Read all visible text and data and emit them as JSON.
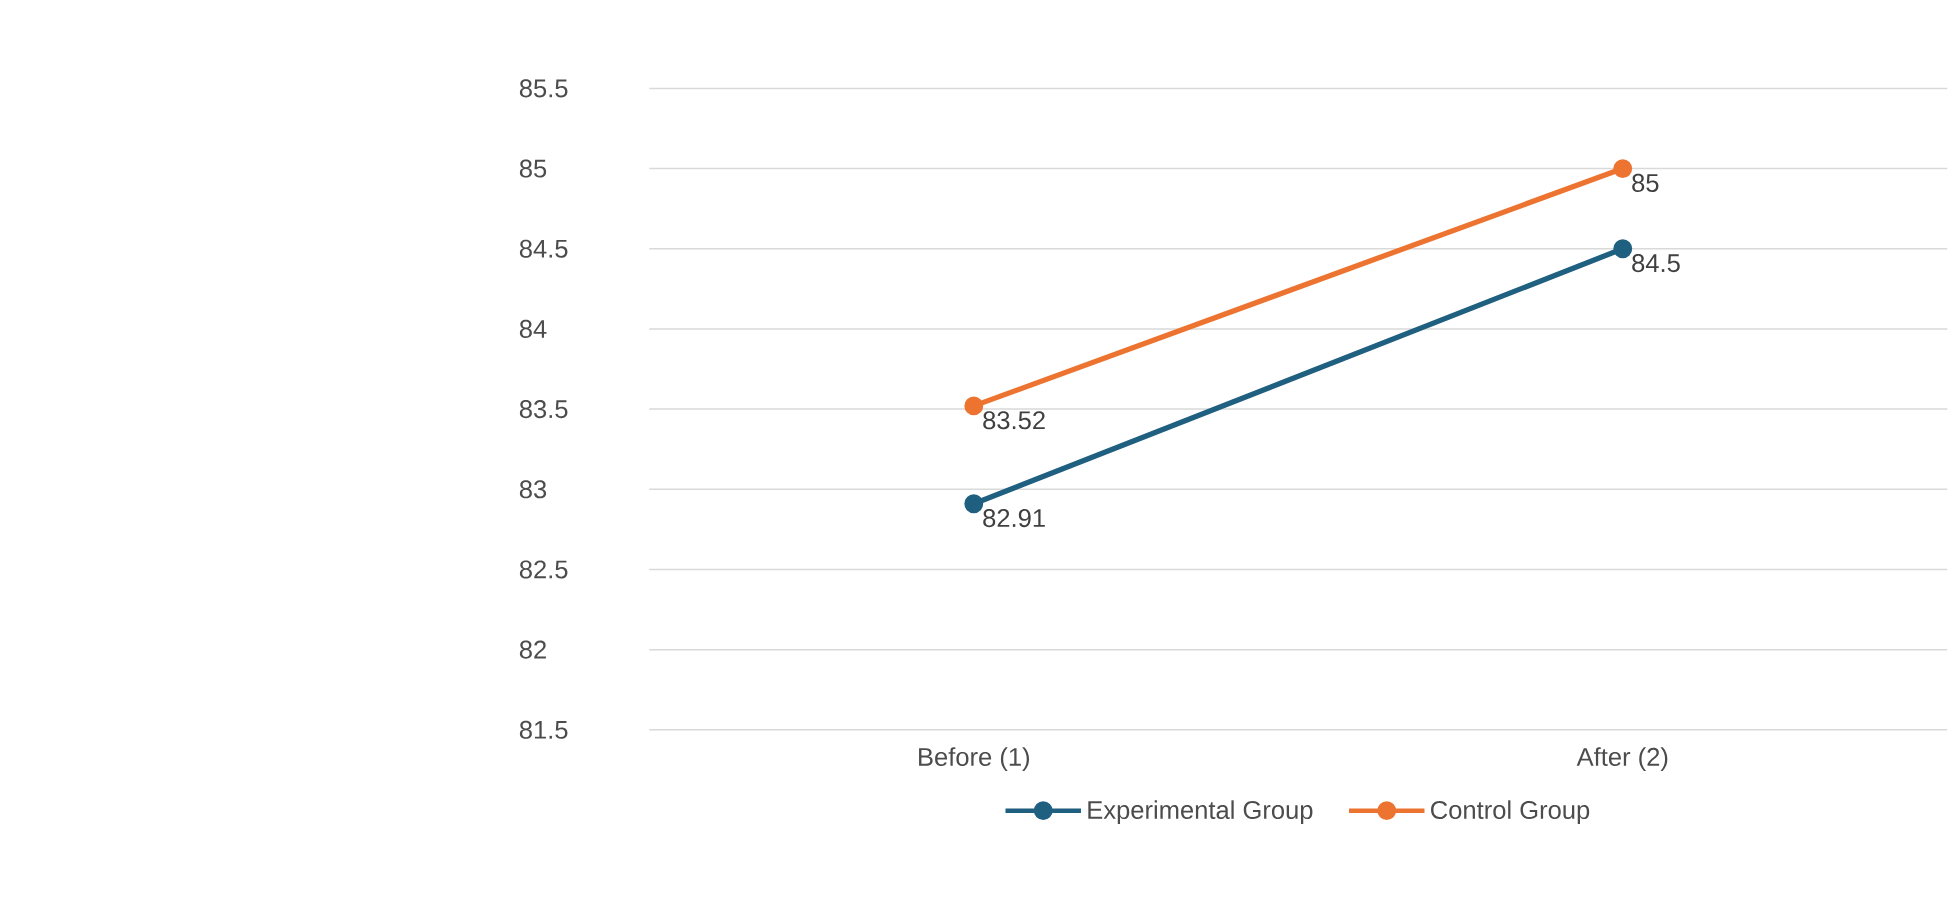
{
  "chart_data": {
    "type": "line",
    "categories": [
      "Before (1)",
      "After (2)"
    ],
    "series": [
      {
        "name": "Experimental Group",
        "color": "#1f5f7f",
        "values": [
          82.91,
          84.5
        ]
      },
      {
        "name": "Control Group",
        "color": "#ed7430",
        "values": [
          83.52,
          85
        ]
      }
    ],
    "ylim": [
      81.5,
      85.5
    ],
    "yticks": [
      81.5,
      82,
      82.5,
      83,
      83.5,
      84,
      84.5,
      85,
      85.5
    ],
    "grid": "y",
    "legend": "bottom",
    "marker": "circle",
    "line_style": "solid",
    "data_labels": true
  }
}
